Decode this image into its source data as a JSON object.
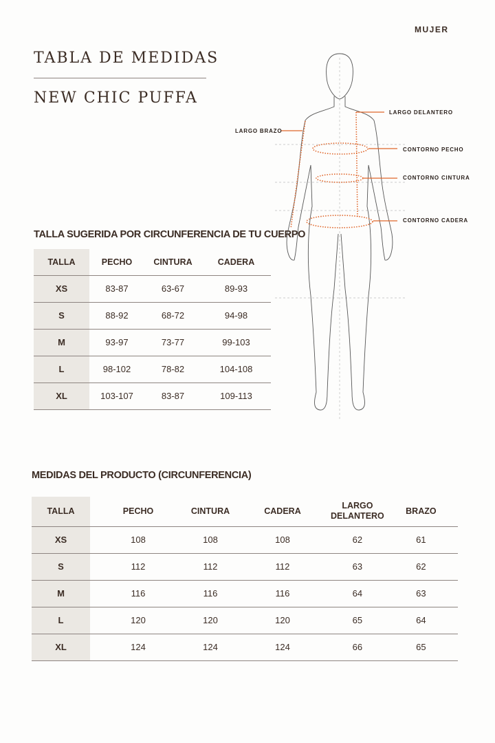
{
  "header": {
    "category": "MUJER",
    "title": "TABLA DE MEDIDAS",
    "product": "NEW CHIC PUFFA"
  },
  "figure": {
    "labels": {
      "largo_delantero": "LARGO DELANTERO",
      "largo_brazo": "LARGO BRAZO",
      "contorno_pecho": "CONTORNO PECHO",
      "contorno_cintura": "CONTORNO CINTURA",
      "contorno_cadera": "CONTORNO CADERA"
    },
    "accent": "#e0662a"
  },
  "body_table": {
    "title": "TALLA SUGERIDA POR CIRCUNFERENCIA DE TU CUERPO",
    "columns": [
      "TALLA",
      "PECHO",
      "CINTURA",
      "CADERA"
    ],
    "rows": [
      [
        "XS",
        "83-87",
        "63-67",
        "89-93"
      ],
      [
        "S",
        "88-92",
        "68-72",
        "94-98"
      ],
      [
        "M",
        "93-97",
        "73-77",
        "99-103"
      ],
      [
        "L",
        "98-102",
        "78-82",
        "104-108"
      ],
      [
        "XL",
        "103-107",
        "83-87",
        "109-113"
      ]
    ]
  },
  "product_table": {
    "title": "MEDIDAS DEL PRODUCTO (CIRCUNFERENCIA)",
    "columns": [
      "TALLA",
      "PECHO",
      "CINTURA",
      "CADERA",
      "LARGO DELANTERO",
      "BRAZO"
    ],
    "rows": [
      [
        "XS",
        "108",
        "108",
        "108",
        "62",
        "61"
      ],
      [
        "S",
        "112",
        "112",
        "112",
        "63",
        "62"
      ],
      [
        "M",
        "116",
        "116",
        "116",
        "64",
        "63"
      ],
      [
        "L",
        "120",
        "120",
        "120",
        "65",
        "64"
      ],
      [
        "XL",
        "124",
        "124",
        "124",
        "66",
        "65"
      ]
    ]
  },
  "colors": {
    "text": "#3b2c24",
    "accent": "#e0662a",
    "shade": "#ebe8e3",
    "rule": "#8d8480"
  }
}
